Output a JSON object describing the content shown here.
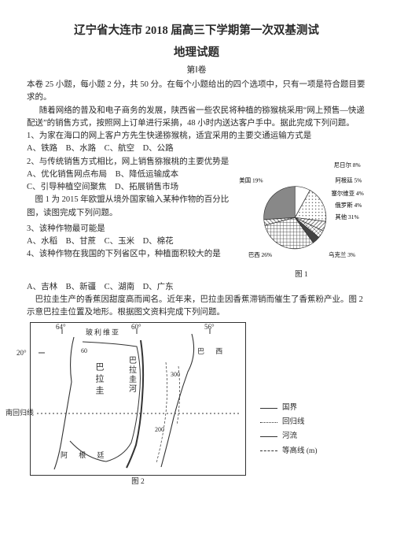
{
  "header": {
    "title_line1": "辽宁省大连市 2018 届高三下学期第一次双基测试",
    "title_line2": "地理试题",
    "subtitle": "第Ⅰ卷"
  },
  "intro": {
    "p1": "本卷 25 小题，每小题 2 分，共 50 分。在每个小题给出的四个选项中，只有一项是符合题目要求的。",
    "p2": "随着网络的普及和电子商务的发展，陕西省一些农民将种植的猕猴桃采用“网上预售—快递配送”的销售方式，按照网上订单进行采摘，48 小时内送达客户手中。据此完成下列问题。"
  },
  "q1": {
    "stem": "1、为家在海口的网上客户方先生快递猕猴桃，适宜采用的主要交通运输方式是",
    "opts": "A、铁路　B、水路　C、航空　D、公路"
  },
  "q2": {
    "stem": "2、与传统销售方式相比，网上销售猕猴桃的主要优势是",
    "optA": "A、优化销售网点布局　B、降低运输成本",
    "optC": "C、引导种植空间聚焦　D、拓展销售市场"
  },
  "fig1_intro": "　图 1 为 2015 年欧盟从境外国家输入某种作物的百分比图，读图完成下列问题。",
  "q3": {
    "stem": "3、该种作物最可能是",
    "opts": "A、水稻　B、甘蔗　C、玉米　D、棉花"
  },
  "q4": {
    "stem": "4、该种作物在我国的下列省区中，种植面积较大的是",
    "opts": "A、吉林　B、新疆　C、湖南　D、广东"
  },
  "passage2": "　巴拉圭生产的香蕉因甜度高而闻名。近年来，巴拉圭因香蕉滞销而催生了香蕉粉产业。图 2 示意巴拉圭位置及地形。根据图文资料完成下列问题。",
  "pie": {
    "caption": "图 1",
    "labels": {
      "nigeria": "尼日尔 8%",
      "usa": "美国 19%",
      "argentina": "阿根廷 5%",
      "serbia": "塞尔维亚 4%",
      "russia": "俄罗斯 4%",
      "other": "其他 31%",
      "ukraine": "乌克兰 3%",
      "brazil": "巴西 26%"
    },
    "slices": [
      {
        "start": -90,
        "end": -61.2,
        "fill": "#fff",
        "hatch": null
      },
      {
        "start": -61.2,
        "end": 7.2,
        "fill": "#fff",
        "hatch": "dots"
      },
      {
        "start": 7.2,
        "end": 25.2,
        "fill": "#fff",
        "hatch": "diag"
      },
      {
        "start": 25.2,
        "end": 39.6,
        "fill": "#fff",
        "hatch": "cross"
      },
      {
        "start": 39.6,
        "end": 54.0,
        "fill": "#444",
        "hatch": null
      },
      {
        "start": 54.0,
        "end": 165.6,
        "fill": "#fff",
        "hatch": "vcross"
      },
      {
        "start": 165.6,
        "end": 176.4,
        "fill": "#fff",
        "hatch": "hdiag"
      },
      {
        "start": 176.4,
        "end": 270,
        "fill": "#888",
        "hatch": null
      }
    ]
  },
  "map": {
    "caption": "图 2",
    "top_lons": {
      "l1": "64°",
      "l2": "60°",
      "l3": "56°"
    },
    "countries": {
      "bolivia": "玻利维亚",
      "brazil": "巴 西",
      "paraguay": "巴拉圭",
      "argentina": "阿 根 廷"
    },
    "river": "巴拉圭河",
    "tropic": "南回归线",
    "lat": "20°",
    "heights": {
      "h1": "60",
      "h2": "300",
      "h3": "200"
    },
    "legend": {
      "border": "国界",
      "tropic": "回归线",
      "river": "河流",
      "contour": "等高线 (m)"
    }
  }
}
